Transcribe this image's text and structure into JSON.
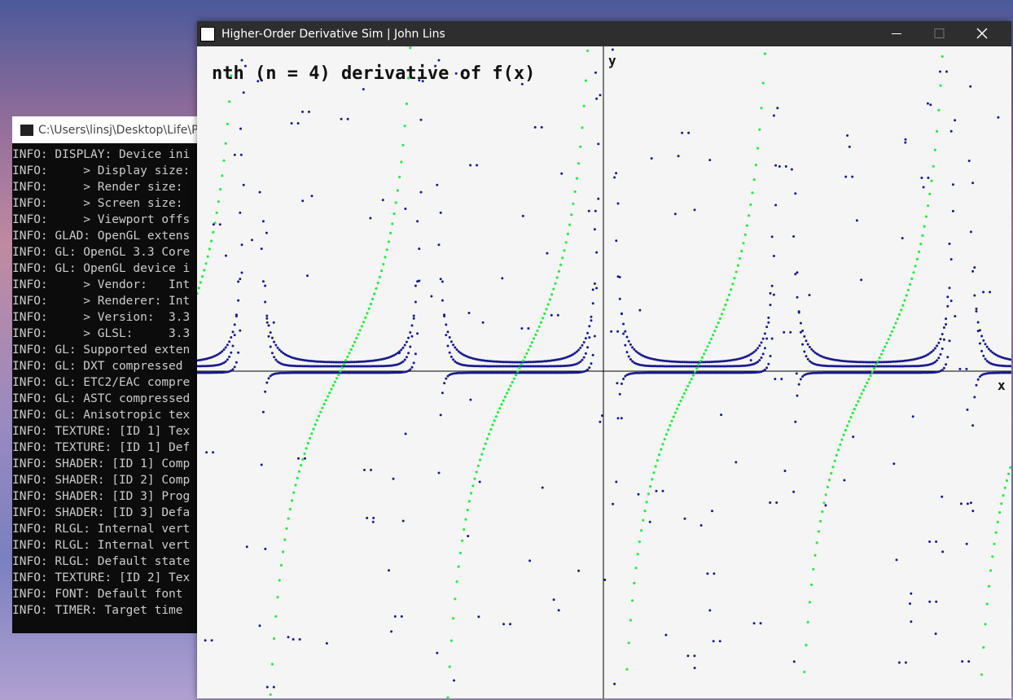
{
  "console": {
    "title": "C:\\Users\\linsj\\Desktop\\Life\\Pr",
    "lines": [
      "INFO: DISPLAY: Device ini",
      "INFO:     > Display size:",
      "INFO:     > Render size:",
      "INFO:     > Screen size:",
      "INFO:     > Viewport offs",
      "INFO: GLAD: OpenGL extens",
      "INFO: GL: OpenGL 3.3 Core",
      "INFO: GL: OpenGL device i",
      "INFO:     > Vendor:   Int",
      "INFO:     > Renderer: Int",
      "INFO:     > Version:  3.3",
      "INFO:     > GLSL:     3.3",
      "INFO: GL: Supported exten",
      "INFO: GL: DXT compressed",
      "INFO: GL: ETC2/EAC compre",
      "INFO: GL: ASTC compressed",
      "INFO: GL: Anisotropic tex",
      "INFO: TEXTURE: [ID 1] Tex",
      "INFO: TEXTURE: [ID 1] Def",
      "INFO: SHADER: [ID 1] Comp",
      "INFO: SHADER: [ID 2] Comp",
      "INFO: SHADER: [ID 3] Prog",
      "INFO: SHADER: [ID 3] Defa",
      "INFO: RLGL: Internal vert",
      "INFO: RLGL: Internal vert",
      "INFO: RLGL: Default state",
      "INFO: TEXTURE: [ID 2] Tex",
      "INFO: FONT: Default font",
      "INFO: TIMER: Target time"
    ]
  },
  "app": {
    "title": "Higher-Order Derivative Sim | John Lins",
    "heading": "nth (n = 4) derivative of f(x)",
    "y_label": "y",
    "x_label": "x"
  }
}
